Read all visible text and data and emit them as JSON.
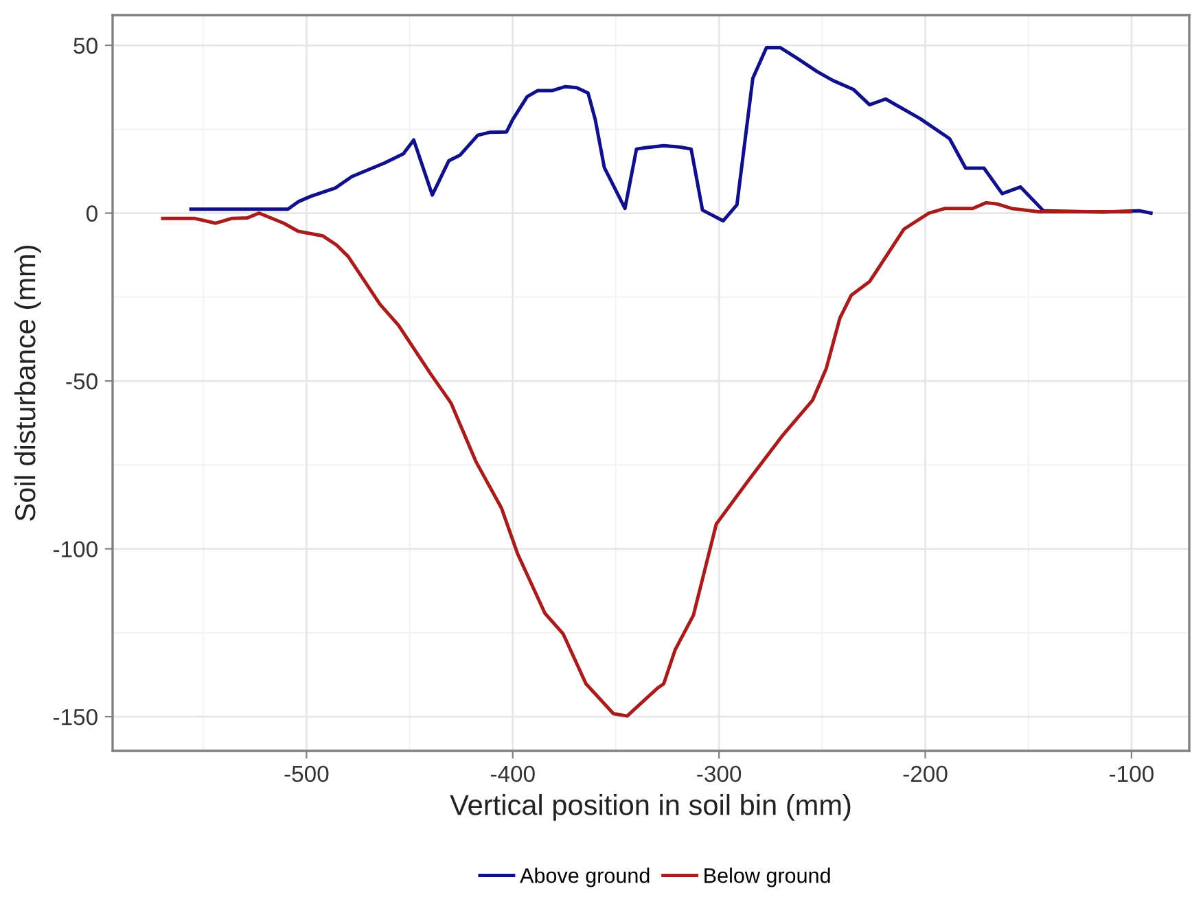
{
  "chart_data": {
    "type": "line",
    "xlabel": "Vertical position in soil bin (mm)",
    "ylabel": "Soil disturbance (mm)",
    "xlim": [
      -594,
      -72
    ],
    "ylim": [
      -160.2,
      59
    ],
    "xticks": [
      -500,
      -400,
      -300,
      -200,
      -100
    ],
    "yticks": [
      -150,
      -100,
      -50,
      0,
      50
    ],
    "grid": true,
    "legend": "bottom",
    "line_style": "solid",
    "marker": "none",
    "series": [
      {
        "name": "Above ground",
        "color": "#10108a",
        "x": [
          -556,
          -509,
          -504,
          -498,
          -486,
          -478,
          -462,
          -453,
          -448,
          -439,
          -431,
          -425.5,
          -417,
          -411,
          -403,
          -400,
          -393,
          -388,
          -381,
          -374.5,
          -369,
          -363.5,
          -360,
          -355.6,
          -345.6,
          -340,
          -335.7,
          -326.8,
          -319,
          -313.5,
          -308,
          -298,
          -291.3,
          -283.6,
          -277,
          -270.3,
          -262.5,
          -252.5,
          -244.7,
          -234.7,
          -227,
          -219.2,
          -202.6,
          -188.2,
          -180.4,
          -171.5,
          -162.7,
          -153.8,
          -142.7,
          -113.9,
          -96,
          -90.6
        ],
        "values": [
          1.2,
          1.2,
          3.4,
          5,
          7.5,
          10.9,
          15,
          17.7,
          21.8,
          5.4,
          15.6,
          17.3,
          23.2,
          24.1,
          24.2,
          27.9,
          34.7,
          36.5,
          36.5,
          37.7,
          37.4,
          35.8,
          27.9,
          13.6,
          1.4,
          19.1,
          19.5,
          20.1,
          19.7,
          19.1,
          0.9,
          -2.3,
          2.5,
          40.2,
          49.3,
          49.3,
          46.3,
          42.2,
          39.5,
          36.8,
          32.3,
          34,
          28.2,
          22.2,
          13.4,
          13.4,
          5.8,
          7.8,
          0.7,
          0.3,
          0.7,
          0
        ]
      },
      {
        "name": "Below ground",
        "color": "#a81c1c",
        "x": [
          -569.7,
          -554,
          -544,
          -536.4,
          -528.6,
          -523,
          -511,
          -504,
          -492,
          -485.4,
          -479.8,
          -464.3,
          -455.4,
          -440,
          -430,
          -417.7,
          -405.5,
          -397.7,
          -384.4,
          -375.6,
          -364.5,
          -351.2,
          -344.5,
          -330,
          -326.8,
          -321.2,
          -312.4,
          -301.3,
          -285.8,
          -269,
          -254.7,
          -248,
          -241.4,
          -235.9,
          -227,
          -210.4,
          -198.3,
          -190.4,
          -177,
          -170.5,
          -164.9,
          -158.2,
          -144.9,
          -100.5
        ],
        "values": [
          -1.6,
          -1.6,
          -3,
          -1.6,
          -1.4,
          0,
          -3,
          -5.4,
          -6.8,
          -9.5,
          -12.9,
          -27.2,
          -33.4,
          -47.7,
          -56.5,
          -74.2,
          -87.8,
          -101.4,
          -119.2,
          -125.3,
          -140.2,
          -149.1,
          -149.8,
          -141.6,
          -140.2,
          -130,
          -119.8,
          -92.6,
          -79.7,
          -66.1,
          -55.8,
          -46.3,
          -31.3,
          -24.5,
          -20.4,
          -4.8,
          0,
          1.4,
          1.4,
          3.1,
          2.7,
          1.4,
          0.4,
          0.4
        ]
      }
    ]
  }
}
